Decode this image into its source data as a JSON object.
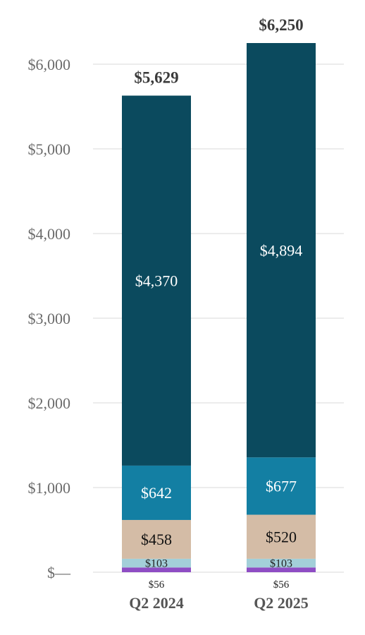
{
  "chart_data": {
    "type": "bar",
    "stacked": true,
    "categories": [
      "Q2 2024",
      "Q2 2025"
    ],
    "series": [
      {
        "values": [
          56,
          56
        ],
        "labels": [
          "$56",
          "$56"
        ],
        "color": "#8e4dc4"
      },
      {
        "values": [
          103,
          103
        ],
        "labels": [
          "$103",
          "$103"
        ],
        "color": "#a3cfd9"
      },
      {
        "values": [
          458,
          520
        ],
        "labels": [
          "$458",
          "$520"
        ],
        "color": "#d4bca6"
      },
      {
        "values": [
          642,
          677
        ],
        "labels": [
          "$642",
          "$677"
        ],
        "color": "#137fa3"
      },
      {
        "values": [
          4370,
          4894
        ],
        "labels": [
          "$4,370",
          "$4,894"
        ],
        "color": "#0b4a5e"
      }
    ],
    "totals": [
      "$5,629",
      "$6,250"
    ],
    "total_values": [
      5629,
      6250
    ],
    "ylim": [
      0,
      6250
    ],
    "yticks": [
      0,
      1000,
      2000,
      3000,
      4000,
      5000,
      6000
    ],
    "ytick_labels": [
      "$—",
      "$1,000",
      "$2,000",
      "$3,000",
      "$4,000",
      "$5,000",
      "$6,000"
    ],
    "grid": true,
    "legend": "none",
    "xlabel": "",
    "ylabel": "",
    "title": ""
  }
}
